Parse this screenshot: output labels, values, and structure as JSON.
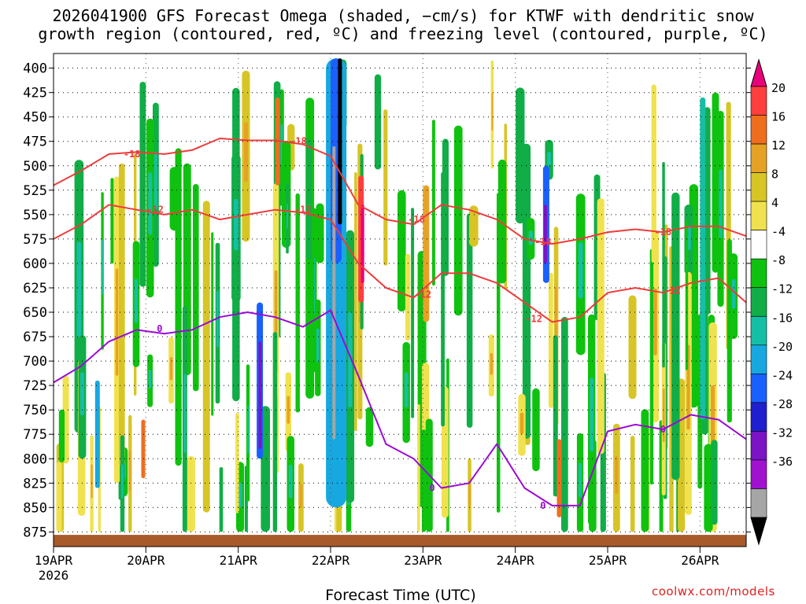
{
  "title_line1": "2026041900 GFS Forecast Omega (shaded, −cm/s) for KTWF with dendritic snow",
  "title_line2": "growth region (contoured, red, ºC) and freezing level (contoured, purple, ºC)",
  "x_axis_title": "Forecast Time (UTC)",
  "credit": "coolwx.com/models",
  "chart_data": {
    "type": "heatmap",
    "title": "2026041900 GFS Forecast Omega (shaded, −cm/s) for KTWF with dendritic snow growth region (contoured, red, ºC) and freezing level (contoured, purple, ºC)",
    "xlabel": "Forecast Time (UTC)",
    "ylabel": "",
    "x_ticks": [
      "19APR",
      "20APR",
      "21APR",
      "22APR",
      "23APR",
      "24APR",
      "25APR",
      "26APR"
    ],
    "x_year_label": "2026",
    "x_range_days": [
      0,
      7.5
    ],
    "y_ticks": [
      400,
      425,
      450,
      475,
      500,
      525,
      550,
      575,
      600,
      625,
      650,
      675,
      700,
      725,
      750,
      775,
      800,
      825,
      850,
      875
    ],
    "y_range_hpa": [
      385,
      890
    ],
    "grid": true,
    "colorbar": {
      "levels": [
        -36,
        -32,
        -28,
        -24,
        -20,
        -16,
        -12,
        -8,
        -4,
        4,
        8,
        12,
        16,
        20
      ],
      "labels": [
        "20",
        "16",
        "12",
        "8",
        "4",
        "-4",
        "-8",
        "-12",
        "-16",
        "-20",
        "-24",
        "-28",
        "-32",
        "-36"
      ],
      "colors": [
        "#e8007a",
        "#ff3e3e",
        "#ee6e1e",
        "#e6a225",
        "#d7c526",
        "#f0e24e",
        "#ffffff",
        "#0fc20f",
        "#11ad47",
        "#15bfa6",
        "#17a8e0",
        "#1a60ff",
        "#1f1fcf",
        "#7a14c6",
        "#a012d0",
        "#a6a6a6",
        "#000000"
      ]
    },
    "series": [
      {
        "name": "-18",
        "color": "#ef3b3b",
        "x": [
          0,
          0.3,
          0.6,
          0.9,
          1.2,
          1.5,
          1.8,
          2.1,
          2.4,
          2.7,
          3.0,
          3.3,
          3.6,
          3.9,
          4.2,
          4.5,
          4.8,
          5.1,
          5.4,
          5.7,
          6.0,
          6.3,
          6.6,
          6.9,
          7.2,
          7.5
        ],
        "y": [
          520,
          505,
          488,
          486,
          488,
          484,
          472,
          474,
          474,
          478,
          490,
          540,
          555,
          560,
          540,
          545,
          555,
          575,
          580,
          575,
          568,
          565,
          568,
          562,
          562,
          572
        ]
      },
      {
        "name": "-12",
        "color": "#ef3b3b",
        "x": [
          0,
          0.3,
          0.6,
          0.9,
          1.2,
          1.5,
          1.8,
          2.1,
          2.4,
          2.7,
          3.0,
          3.3,
          3.6,
          3.9,
          4.2,
          4.5,
          4.8,
          5.1,
          5.4,
          5.7,
          6.0,
          6.3,
          6.6,
          6.9,
          7.2,
          7.5
        ],
        "y": [
          575,
          560,
          540,
          545,
          550,
          545,
          555,
          550,
          545,
          548,
          555,
          600,
          625,
          635,
          610,
          610,
          620,
          640,
          660,
          655,
          630,
          625,
          630,
          620,
          615,
          640
        ]
      },
      {
        "name": "0",
        "color": "#9a0ad6",
        "x": [
          0,
          0.3,
          0.6,
          0.9,
          1.2,
          1.5,
          1.8,
          2.1,
          2.4,
          2.7,
          3.0,
          3.3,
          3.6,
          3.9,
          4.2,
          4.5,
          4.8,
          5.1,
          5.4,
          5.7,
          6.0,
          6.3,
          6.6,
          6.9,
          7.2,
          7.5
        ],
        "y": [
          722,
          705,
          680,
          668,
          672,
          668,
          655,
          650,
          655,
          665,
          648,
          715,
          785,
          800,
          830,
          825,
          785,
          830,
          848,
          848,
          772,
          765,
          770,
          755,
          760,
          780
        ]
      }
    ],
    "series_labels": [
      {
        "text": "-18",
        "x": 0.85,
        "y": 488
      },
      {
        "text": "-18",
        "x": 2.65,
        "y": 475
      },
      {
        "text": "-18",
        "x": 3.93,
        "y": 555
      },
      {
        "text": "-18",
        "x": 5.3,
        "y": 578
      },
      {
        "text": "-18",
        "x": 6.6,
        "y": 568
      },
      {
        "text": "-12",
        "x": 1.1,
        "y": 545
      },
      {
        "text": "-12",
        "x": 2.7,
        "y": 545
      },
      {
        "text": "-12",
        "x": 4.0,
        "y": 632
      },
      {
        "text": "-12",
        "x": 5.2,
        "y": 657
      },
      {
        "text": "-12",
        "x": 6.7,
        "y": 628
      },
      {
        "text": "0",
        "x": 1.15,
        "y": 667
      },
      {
        "text": "0",
        "x": 4.1,
        "y": 830
      },
      {
        "text": "0",
        "x": 5.3,
        "y": 848
      },
      {
        "text": "0",
        "x": 6.6,
        "y": 770
      }
    ]
  }
}
